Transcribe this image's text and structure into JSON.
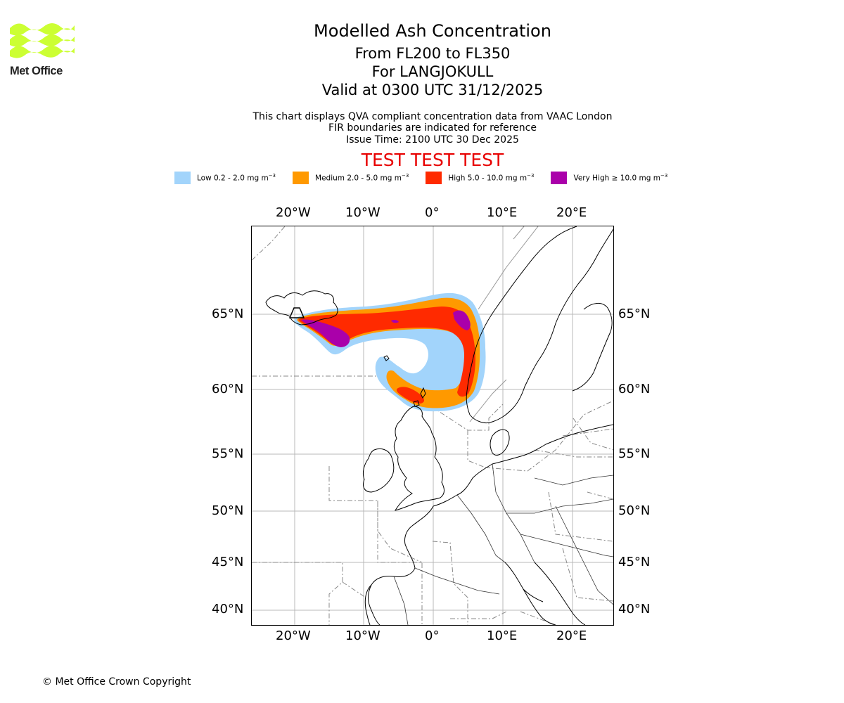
{
  "logo": {
    "text": "Met Office",
    "colors": {
      "waves": "#ccff33",
      "text": "#222222"
    }
  },
  "header": {
    "title": "Modelled Ash Concentration",
    "level_range": "From FL200 to FL350",
    "volcano": "For LANGJOKULL",
    "valid_time": "Valid at 0300 UTC 31/12/2025",
    "note_1": "This chart displays QVA compliant concentration data from VAAC London",
    "note_2": "FIR boundaries are indicated for reference",
    "issue_time": "Issue Time: 2100 UTC 30 Dec 2025",
    "test_banner": "TEST TEST TEST"
  },
  "legend": [
    {
      "label": "Low 0.2 - 2.0 mg m",
      "sup": "−3",
      "color": "#a2d4fb"
    },
    {
      "label": "Medium 2.0 - 5.0 mg m",
      "sup": "−3",
      "color": "#ff9900"
    },
    {
      "label": "High 5.0 - 10.0 mg m",
      "sup": "−3",
      "color": "#ff2a00"
    },
    {
      "label": "Very High  ≥  10.0 mg m",
      "sup": "−3",
      "color": "#aa00aa"
    }
  ],
  "map": {
    "lon_labels": [
      "20°W",
      "10°W",
      "0°",
      "10°E",
      "20°E"
    ],
    "lat_labels": [
      "65°N",
      "60°N",
      "55°N",
      "50°N",
      "45°N",
      "40°N"
    ]
  },
  "footer": {
    "copyright": "© Met Office Crown Copyright"
  }
}
